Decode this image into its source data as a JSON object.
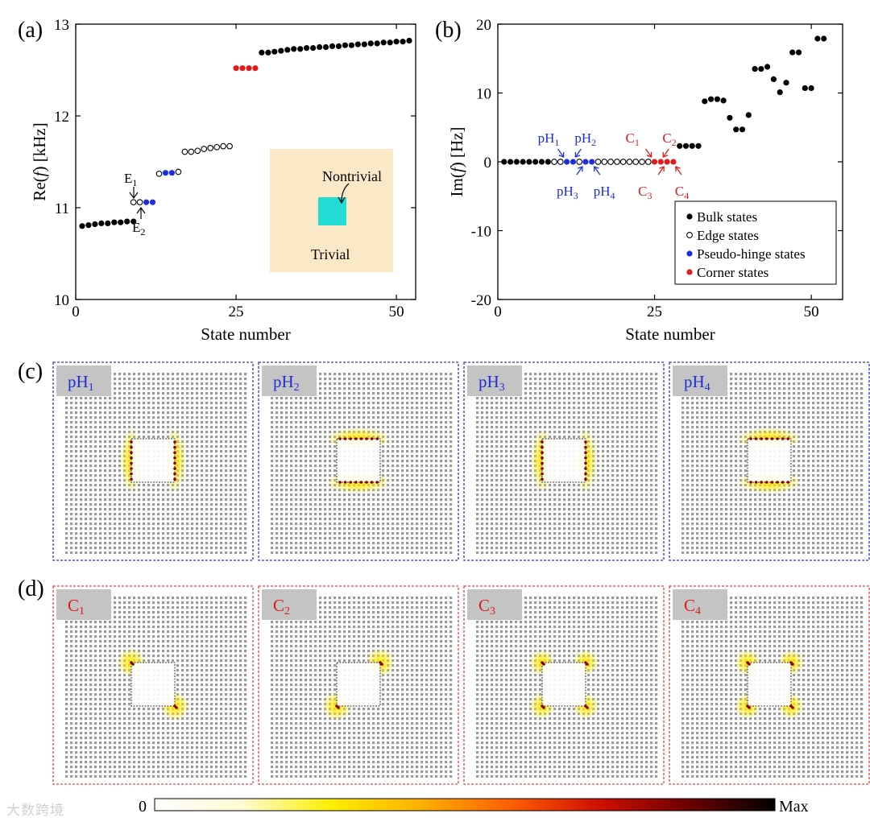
{
  "chart_data": [
    {
      "panel": "(a)",
      "type": "scatter",
      "xlabel": "State number",
      "ylabel_parts": [
        "Re(",
        "f",
        ") [kHz]"
      ],
      "xlim": [
        0,
        53
      ],
      "ylim": [
        10,
        13
      ],
      "xticks": [
        0,
        25,
        50
      ],
      "yticks": [
        10,
        11,
        12,
        13
      ],
      "series": [
        {
          "name": "Bulk states",
          "color": "#000000",
          "marker": "filled",
          "points": [
            [
              1,
              10.8
            ],
            [
              2,
              10.81
            ],
            [
              3,
              10.82
            ],
            [
              4,
              10.83
            ],
            [
              5,
              10.83
            ],
            [
              6,
              10.84
            ],
            [
              7,
              10.84
            ],
            [
              8,
              10.85
            ],
            [
              9,
              10.85
            ],
            [
              29,
              12.69
            ],
            [
              30,
              12.69
            ],
            [
              31,
              12.7
            ],
            [
              32,
              12.71
            ],
            [
              33,
              12.72
            ],
            [
              34,
              12.73
            ],
            [
              35,
              12.73
            ],
            [
              36,
              12.74
            ],
            [
              37,
              12.74
            ],
            [
              38,
              12.75
            ],
            [
              39,
              12.75
            ],
            [
              40,
              12.76
            ],
            [
              41,
              12.76
            ],
            [
              42,
              12.77
            ],
            [
              43,
              12.77
            ],
            [
              44,
              12.78
            ],
            [
              45,
              12.78
            ],
            [
              46,
              12.79
            ],
            [
              47,
              12.79
            ],
            [
              48,
              12.8
            ],
            [
              49,
              12.8
            ],
            [
              50,
              12.81
            ],
            [
              51,
              12.81
            ],
            [
              52,
              12.82
            ]
          ]
        },
        {
          "name": "Edge states",
          "color": "#000000",
          "marker": "open",
          "points": [
            [
              9,
              11.06
            ],
            [
              10,
              11.06
            ],
            [
              13,
              11.37
            ],
            [
              16,
              11.39
            ],
            [
              17,
              11.61
            ],
            [
              18,
              11.61
            ],
            [
              19,
              11.62
            ],
            [
              20,
              11.64
            ],
            [
              21,
              11.65
            ],
            [
              22,
              11.66
            ],
            [
              23,
              11.67
            ],
            [
              24,
              11.67
            ]
          ]
        },
        {
          "name": "Pseudo-hinge states",
          "color": "#1f2fd8",
          "marker": "filled",
          "points": [
            [
              11,
              11.06
            ],
            [
              12,
              11.06
            ],
            [
              14,
              11.38
            ],
            [
              15,
              11.38
            ]
          ]
        },
        {
          "name": "Corner states",
          "color": "#e01b1b",
          "marker": "filled",
          "points": [
            [
              25,
              12.52
            ],
            [
              26,
              12.52
            ],
            [
              27,
              12.52
            ],
            [
              28,
              12.52
            ]
          ]
        }
      ],
      "annotations": [
        {
          "label": "E",
          "sub": "1"
        },
        {
          "label": "E",
          "sub": "2"
        }
      ],
      "inset": {
        "nontrivial": "Nontrivial",
        "trivial": "Trivial",
        "bg": "#fbe8c6",
        "square": "#22dcd6"
      }
    },
    {
      "panel": "(b)",
      "type": "scatter",
      "xlabel": "State number",
      "ylabel_parts": [
        "Im(",
        "f",
        ") [Hz]"
      ],
      "xlim": [
        0,
        55
      ],
      "ylim": [
        -20,
        20
      ],
      "xticks": [
        0,
        25,
        50
      ],
      "yticks": [
        -20,
        -10,
        0,
        10,
        20
      ],
      "series": [
        {
          "name": "Bulk states",
          "color": "#000000",
          "marker": "filled",
          "points": [
            [
              1,
              0
            ],
            [
              2,
              0
            ],
            [
              3,
              0
            ],
            [
              4,
              0
            ],
            [
              5,
              0
            ],
            [
              6,
              0
            ],
            [
              7,
              0
            ],
            [
              8,
              0
            ],
            [
              9,
              0
            ],
            [
              29,
              2.3
            ],
            [
              30,
              2.3
            ],
            [
              31,
              2.3
            ],
            [
              32,
              2.3
            ],
            [
              33,
              8.8
            ],
            [
              34,
              9.1
            ],
            [
              35,
              9.1
            ],
            [
              36,
              8.9
            ],
            [
              37,
              6.4
            ],
            [
              38,
              4.7
            ],
            [
              39,
              4.7
            ],
            [
              40,
              6.8
            ],
            [
              41,
              13.5
            ],
            [
              42,
              13.5
            ],
            [
              43,
              13.8
            ],
            [
              44,
              12.0
            ],
            [
              45,
              10.1
            ],
            [
              46,
              11.5
            ],
            [
              47,
              15.9
            ],
            [
              48,
              15.9
            ],
            [
              49,
              10.7
            ],
            [
              50,
              10.7
            ],
            [
              51,
              17.9
            ],
            [
              52,
              17.9
            ]
          ]
        },
        {
          "name": "Edge states",
          "color": "#000000",
          "marker": "open",
          "points": [
            [
              9,
              0
            ],
            [
              10,
              0
            ],
            [
              13,
              0
            ],
            [
              16,
              0
            ],
            [
              17,
              0
            ],
            [
              18,
              0
            ],
            [
              19,
              0
            ],
            [
              20,
              0
            ],
            [
              21,
              0
            ],
            [
              22,
              0
            ],
            [
              23,
              0
            ],
            [
              24,
              0
            ]
          ]
        },
        {
          "name": "Pseudo-hinge states",
          "color": "#1f2fd8",
          "marker": "filled",
          "points": [
            [
              11,
              0
            ],
            [
              12,
              0
            ],
            [
              14,
              0
            ],
            [
              15,
              0
            ]
          ]
        },
        {
          "name": "Corner states",
          "color": "#e01b1b",
          "marker": "filled",
          "points": [
            [
              25,
              0
            ],
            [
              26,
              0
            ],
            [
              27,
              0
            ],
            [
              28,
              0
            ]
          ]
        }
      ],
      "annotations": [
        {
          "label": "pH",
          "sub": "1",
          "color": "#1f2fd8"
        },
        {
          "label": "pH",
          "sub": "2",
          "color": "#1f2fd8"
        },
        {
          "label": "pH",
          "sub": "3",
          "color": "#1f2fd8"
        },
        {
          "label": "pH",
          "sub": "4",
          "color": "#1f2fd8"
        },
        {
          "label": "C",
          "sub": "1",
          "color": "#e01b1b"
        },
        {
          "label": "C",
          "sub": "2",
          "color": "#e01b1b"
        },
        {
          "label": "C",
          "sub": "3",
          "color": "#e01b1b"
        },
        {
          "label": "C",
          "sub": "4",
          "color": "#e01b1b"
        }
      ],
      "legend": [
        "Bulk states",
        "Edge states",
        "Pseudo-hinge states",
        "Corner states"
      ],
      "legend_position": "lower-right"
    },
    {
      "panel": "(c)",
      "type": "heatmap",
      "border_color": "#3535d0",
      "maps": [
        {
          "label": "pH",
          "sub": "1",
          "color": "#1f2fd8",
          "pattern": "vertical"
        },
        {
          "label": "pH",
          "sub": "2",
          "color": "#1f2fd8",
          "pattern": "horizontal"
        },
        {
          "label": "pH",
          "sub": "3",
          "color": "#1f2fd8",
          "pattern": "vertical"
        },
        {
          "label": "pH",
          "sub": "4",
          "color": "#1f2fd8",
          "pattern": "horizontal"
        }
      ]
    },
    {
      "panel": "(d)",
      "type": "heatmap",
      "border_color": "#e04646",
      "maps": [
        {
          "label": "C",
          "sub": "1",
          "color": "#e01b1b",
          "pattern": "corners-tl-br"
        },
        {
          "label": "C",
          "sub": "2",
          "color": "#e01b1b",
          "pattern": "corners-tr-bl"
        },
        {
          "label": "C",
          "sub": "3",
          "color": "#e01b1b",
          "pattern": "corners-all"
        },
        {
          "label": "C",
          "sub": "4",
          "color": "#e01b1b",
          "pattern": "corners-all"
        }
      ]
    }
  ],
  "panel_labels": [
    "(a)",
    "(b)",
    "(c)",
    "(d)"
  ],
  "colorbar": {
    "min_label": "0",
    "max_label": "Max",
    "stops": [
      "#ffffff",
      "#fffbd0",
      "#ffee00",
      "#ffb000",
      "#ff6000",
      "#d01000",
      "#700000",
      "#000000"
    ]
  },
  "watermark": "大数跨境"
}
